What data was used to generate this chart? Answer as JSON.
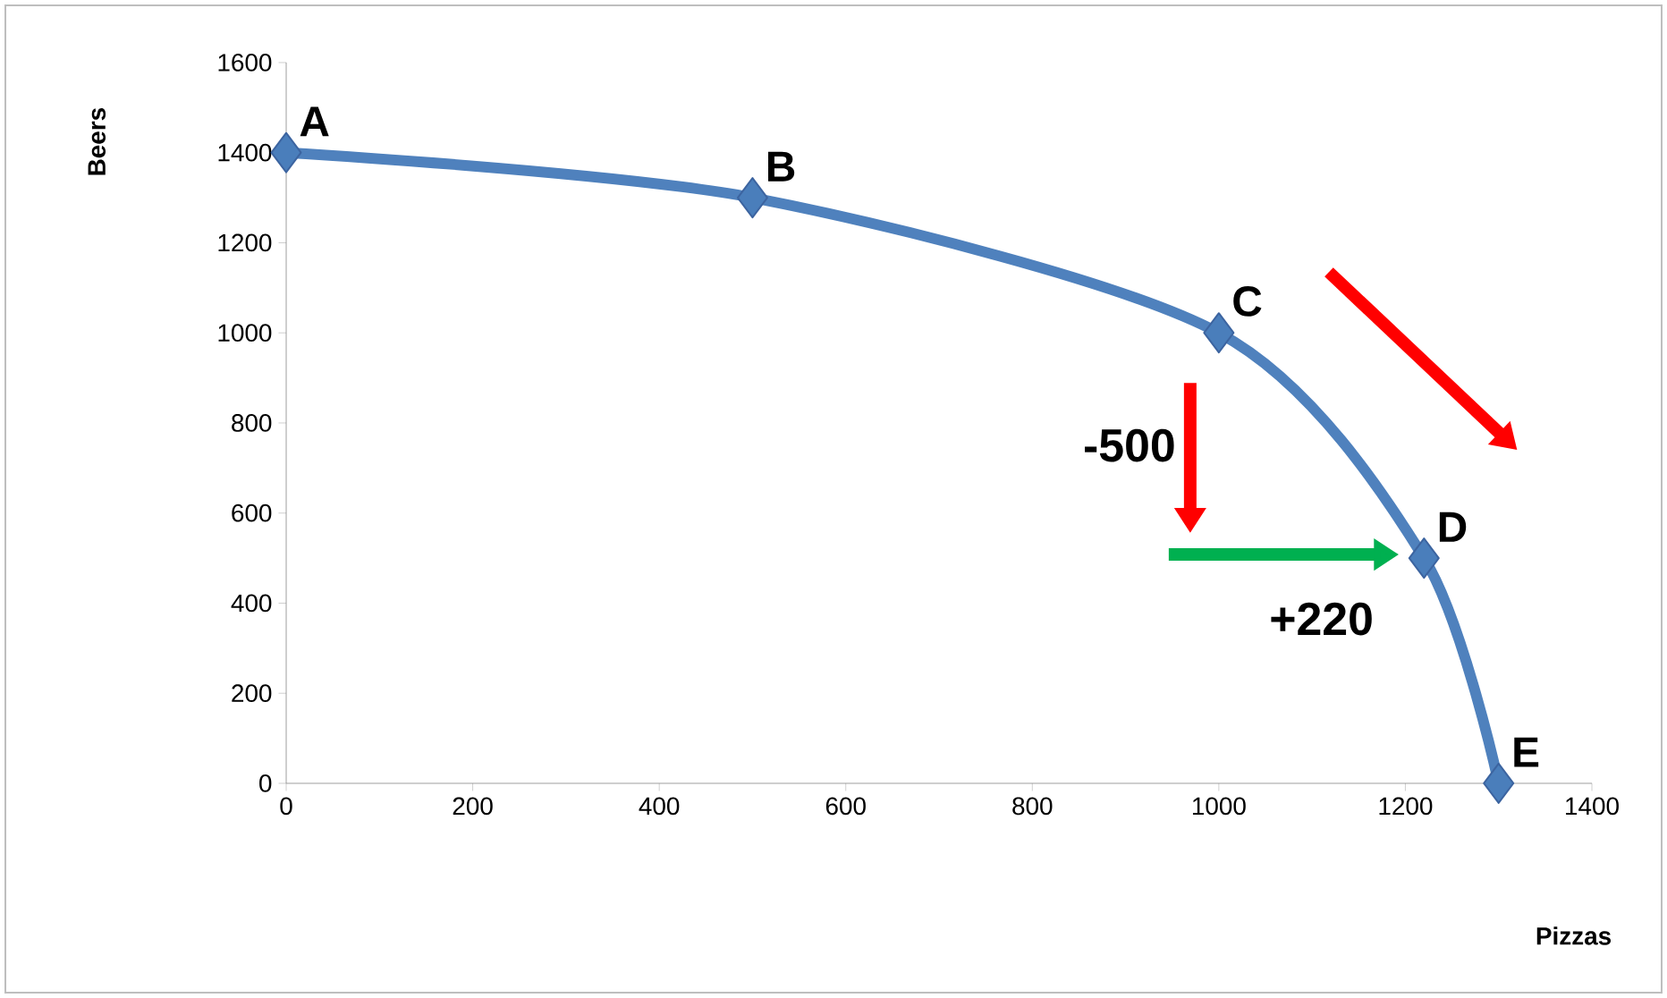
{
  "chart_data": {
    "type": "line",
    "xlabel": "Pizzas",
    "ylabel": "Beers",
    "x": [
      0,
      500,
      1000,
      1220,
      1300
    ],
    "series": [
      {
        "color": "#4f81bd",
        "values": [
          1400,
          1300,
          1000,
          500,
          0
        ]
      }
    ],
    "marker": "diamond",
    "line_style": "solid",
    "xlim": [
      0,
      1400
    ],
    "ylim": [
      0,
      1600
    ],
    "xticks": [
      0,
      200,
      400,
      600,
      800,
      1000,
      1200,
      1400
    ],
    "yticks": [
      0,
      200,
      400,
      600,
      800,
      1000,
      1200,
      1400,
      1600
    ],
    "annotations": [
      {
        "text": "A",
        "x": 0,
        "y": 1400
      },
      {
        "text": "B",
        "x": 500,
        "y": 1300
      },
      {
        "text": "C",
        "x": 1000,
        "y": 1000
      },
      {
        "text": "D",
        "x": 1220,
        "y": 500
      },
      {
        "text": "E",
        "x": 1300,
        "y": 0
      },
      "-500",
      "+220"
    ]
  }
}
